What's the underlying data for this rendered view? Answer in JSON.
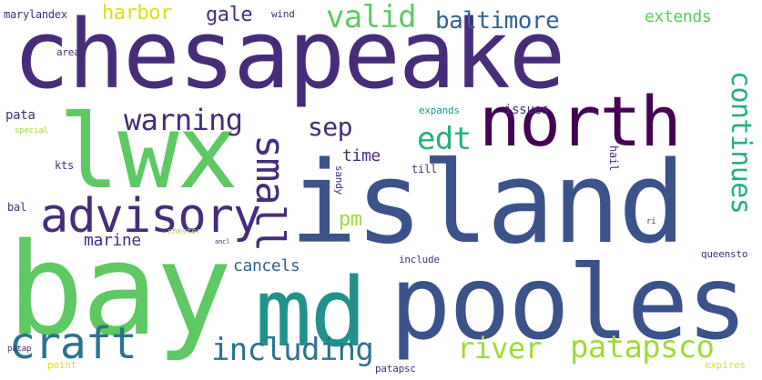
{
  "word_cloud": {
    "colors": {
      "dark_purple": "#440154",
      "indigo": "#472c7a",
      "slate_blue": "#3b528b",
      "steel_blue": "#33638d",
      "teal_blue": "#2c728e",
      "teal": "#21918c",
      "sea_green": "#28ae80",
      "green": "#5ec962",
      "lime": "#a0da39",
      "yellow": "#d8e219",
      "bright_yellow": "#fde725"
    },
    "words": {
      "chesapeake": "chesapeake",
      "island": "island",
      "bay": "bay",
      "pooles": "pooles",
      "lwx": "lwx",
      "md": "md",
      "north": "north",
      "advisory": "advisory",
      "craft": "craft",
      "small": "small",
      "including": "including",
      "patapsco": "patapsco",
      "warning": "warning",
      "continues": "continues",
      "river": "river",
      "valid": "valid",
      "baltimore": "baltimore",
      "edt": "edt",
      "harbor": "harbor",
      "sep": "sep",
      "gale": "gale",
      "cancels": "cancels",
      "marine": "marine",
      "pm": "pm",
      "time": "time",
      "extends": "extends",
      "marylandex": "marylandex",
      "wind": "wind",
      "area": "area",
      "pata": "pata",
      "expands": "expands",
      "issues": "issues",
      "till": "till",
      "hail": "hail",
      "sandy": "sandy",
      "kts": "kts",
      "special": "special",
      "bal": "bal",
      "chester": "chester",
      "include": "include",
      "queensto": "queensto",
      "point": "point",
      "patap": "patap",
      "patapsc": "patapsc",
      "expires": "expires",
      "ri": "ri",
      "ancl": "ancl"
    }
  }
}
